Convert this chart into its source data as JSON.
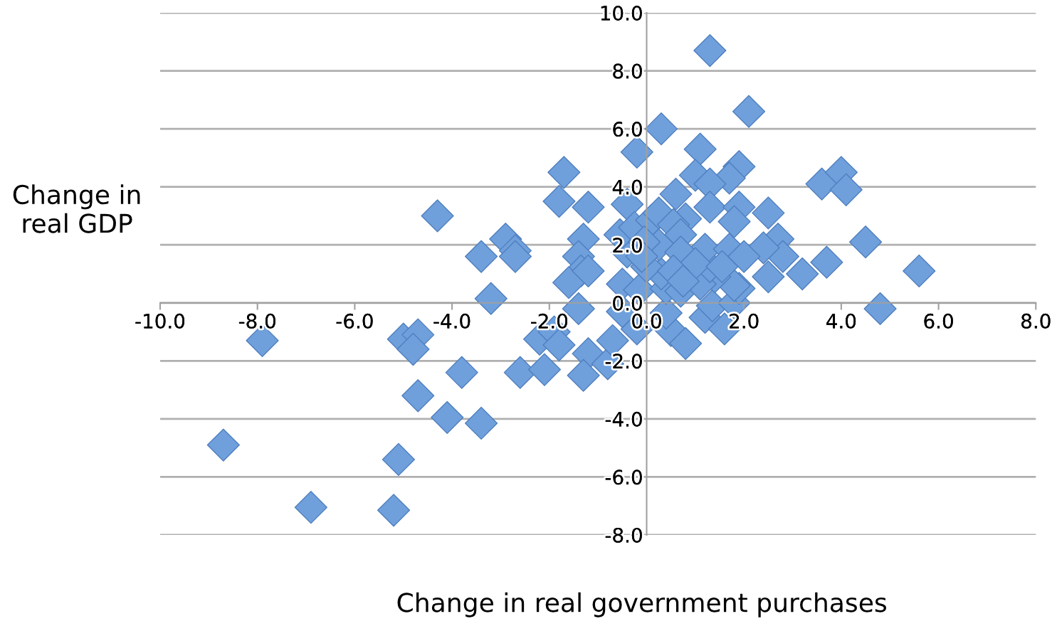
{
  "chart_data": {
    "type": "scatter",
    "xlabel": "Change in real government purchases",
    "ylabel": "Change in\nreal GDP",
    "xlim": [
      -10,
      8
    ],
    "ylim": [
      -8,
      10
    ],
    "xticks": [
      {
        "value": -10,
        "label": "-10.0"
      },
      {
        "value": -8,
        "label": "-8.0"
      },
      {
        "value": -6,
        "label": "-6.0"
      },
      {
        "value": -4,
        "label": "-4.0"
      },
      {
        "value": -2,
        "label": "-2.0"
      },
      {
        "value": 0,
        "label": "0.0"
      },
      {
        "value": 2,
        "label": "2.0"
      },
      {
        "value": 4,
        "label": "4.0"
      },
      {
        "value": 6,
        "label": "6.0"
      },
      {
        "value": 8,
        "label": "8.0"
      }
    ],
    "yticks": [
      {
        "value": -8,
        "label": "-8.0"
      },
      {
        "value": -6,
        "label": "-6.0"
      },
      {
        "value": -4,
        "label": "-4.0"
      },
      {
        "value": -2,
        "label": "-2.0"
      },
      {
        "value": 0,
        "label": "0.0"
      },
      {
        "value": 2,
        "label": "2.0"
      },
      {
        "value": 4,
        "label": "4.0"
      },
      {
        "value": 6,
        "label": "6.0"
      },
      {
        "value": 8,
        "label": "8.0"
      },
      {
        "value": 10,
        "label": "10.0"
      }
    ],
    "grid": "y",
    "marker": "diamond",
    "legend": false,
    "series": [
      {
        "color": "#6fa0dc",
        "x": [
          1.3,
          2.1,
          0.3,
          -0.2,
          1.1,
          -1.7,
          1.0,
          1.9,
          1.7,
          1.3,
          3.6,
          4.0,
          4.1,
          0.6,
          -1.8,
          -1.2,
          -0.4,
          1.3,
          1.9,
          2.5,
          -4.3,
          0.8,
          1.8,
          -2.9,
          -2.7,
          -2.7,
          -3.4,
          -1.3,
          2.7,
          4.5,
          2.8,
          2.4,
          3.7,
          3.2,
          2.5,
          5.6,
          4.8,
          -1.4,
          -1.35,
          -1.6,
          -1.2,
          -1.4,
          -3.2,
          -7.9,
          -5.0,
          -4.7,
          -4.8,
          -2.2,
          -1.9,
          -1.8,
          -1.2,
          -1.3,
          -0.8,
          -0.7,
          -0.2,
          -3.8,
          -2.6,
          -2.1,
          -4.7,
          -4.1,
          -3.4,
          -8.7,
          -5.1,
          -6.9,
          -5.2,
          0.5,
          0.8,
          0.4,
          1.2,
          1.6,
          -0.5,
          -0.5,
          -0.15,
          0.4,
          0.7,
          1.35,
          1.8,
          1.9,
          1.8,
          1.4,
          1.1,
          1.3,
          1.2,
          1.7,
          2.0,
          0.3,
          0.0,
          -0.4,
          -0.55,
          -0.25,
          0.1,
          0.25,
          0.55,
          0.7,
          0.25,
          0.7,
          1.0,
          0.55,
          -0.05,
          -0.1,
          1.55,
          0.75
        ],
        "values": [
          8.7,
          6.6,
          6.0,
          5.2,
          5.3,
          4.5,
          4.4,
          4.7,
          4.3,
          4.1,
          4.1,
          4.5,
          3.9,
          3.75,
          3.5,
          3.3,
          3.4,
          3.3,
          3.3,
          3.1,
          3.0,
          2.9,
          2.8,
          2.2,
          1.8,
          1.6,
          1.6,
          2.2,
          2.2,
          2.1,
          1.6,
          1.9,
          1.4,
          1.0,
          0.9,
          1.1,
          -0.2,
          1.6,
          1.1,
          0.7,
          1.1,
          -0.2,
          0.15,
          -1.3,
          -1.25,
          -1.1,
          -1.6,
          -1.25,
          -1.0,
          -1.45,
          -1.75,
          -2.5,
          -2.1,
          -1.3,
          -0.9,
          -2.4,
          -2.4,
          -2.3,
          -3.2,
          -3.95,
          -4.15,
          -4.9,
          -5.4,
          -7.05,
          -7.15,
          -0.95,
          -1.4,
          -0.35,
          -0.5,
          -0.9,
          -0.3,
          0.65,
          0.45,
          0.5,
          0.4,
          -0.1,
          0.0,
          0.5,
          0.6,
          0.9,
          0.65,
          1.25,
          1.85,
          1.85,
          1.6,
          1.0,
          1.25,
          1.75,
          2.35,
          2.6,
          2.85,
          3.1,
          2.7,
          2.35,
          2.0,
          1.75,
          1.35,
          1.1,
          2.1,
          1.6,
          1.25,
          0.75
        ]
      }
    ]
  }
}
